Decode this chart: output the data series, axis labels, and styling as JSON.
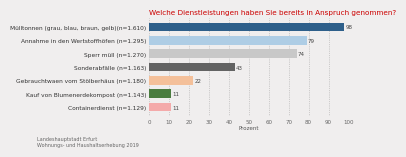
{
  "title": "Welche Dienstleistungen haben Sie bereits in Anspruch genommen?",
  "categories": [
    "Mülltonnen (grau, blau, braun, gelb)(n=1.610)",
    "Annahme in den Wertstoffhöfen (n=1.295)",
    "Sperr müll (n=1.270)",
    "Sonderabfälle (n=1.163)",
    "Gebrauchtwaen vom Stölberhäus (n=1.180)",
    "Kauf von Blumenerdekompost (n=1.143)",
    "Containerdienst (n=1.129)"
  ],
  "values": [
    98,
    79,
    74,
    43,
    22,
    11,
    11
  ],
  "bar_colors": [
    "#2e5f8a",
    "#aecde5",
    "#c8c8c8",
    "#636363",
    "#f4c09a",
    "#4a7c3f",
    "#f4aaaa"
  ],
  "value_labels": [
    "98",
    "79",
    "74",
    "43",
    "22",
    "11",
    "11"
  ],
  "xlabel": "Prozent",
  "xlim": [
    0,
    100
  ],
  "xticks": [
    0,
    10,
    20,
    30,
    40,
    50,
    60,
    70,
    80,
    90,
    100
  ],
  "footer_line1": "Landeshauptstadt Erfurt",
  "footer_line2": "Wohnungs- und Haushaltserhebung 2019",
  "title_color": "#cc0000",
  "background_color": "#f0eeee",
  "title_fontsize": 5.2,
  "label_fontsize": 4.2,
  "tick_fontsize": 4.0,
  "value_fontsize": 4.0,
  "footer_fontsize": 3.5
}
